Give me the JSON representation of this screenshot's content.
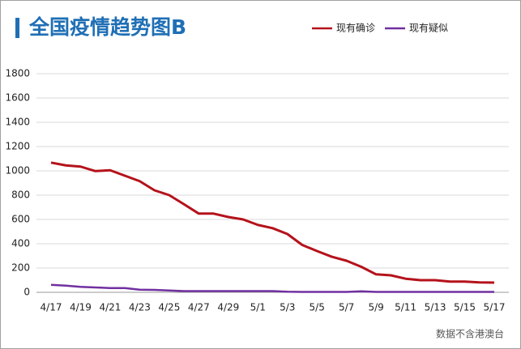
{
  "chart_data": {
    "type": "line",
    "title": "全国疫情趋势图B",
    "note": "数据不含港澳台",
    "categories": [
      "4/17",
      null,
      "4/19",
      null,
      "4/21",
      null,
      "4/23",
      null,
      "4/25",
      null,
      "4/27",
      null,
      "4/29",
      null,
      "5/1",
      null,
      "5/3",
      null,
      "5/5",
      null,
      "5/7",
      null,
      "5/9",
      null,
      "5/11",
      null,
      "5/13",
      null,
      "5/15",
      null,
      "5/17"
    ],
    "series": [
      {
        "name": "现有确诊",
        "color": "#b5121b",
        "values": [
          1068,
          1045,
          1035,
          998,
          1005,
          960,
          915,
          840,
          800,
          725,
          648,
          648,
          620,
          600,
          555,
          528,
          480,
          390,
          340,
          293,
          260,
          210,
          148,
          140,
          112,
          100,
          100,
          88,
          88,
          82,
          80
        ]
      },
      {
        "name": "现有疑似",
        "color": "#7030a0",
        "values": [
          62,
          55,
          45,
          40,
          35,
          35,
          22,
          20,
          15,
          10,
          10,
          10,
          10,
          10,
          10,
          10,
          5,
          3,
          3,
          3,
          3,
          8,
          3,
          3,
          3,
          3,
          3,
          3,
          3,
          3,
          3
        ]
      }
    ],
    "ylim": [
      0,
      1800
    ],
    "yticks": [
      0,
      200,
      400,
      600,
      800,
      1000,
      1200,
      1400,
      1600,
      1800
    ],
    "grid": true,
    "legend": "upper right"
  }
}
